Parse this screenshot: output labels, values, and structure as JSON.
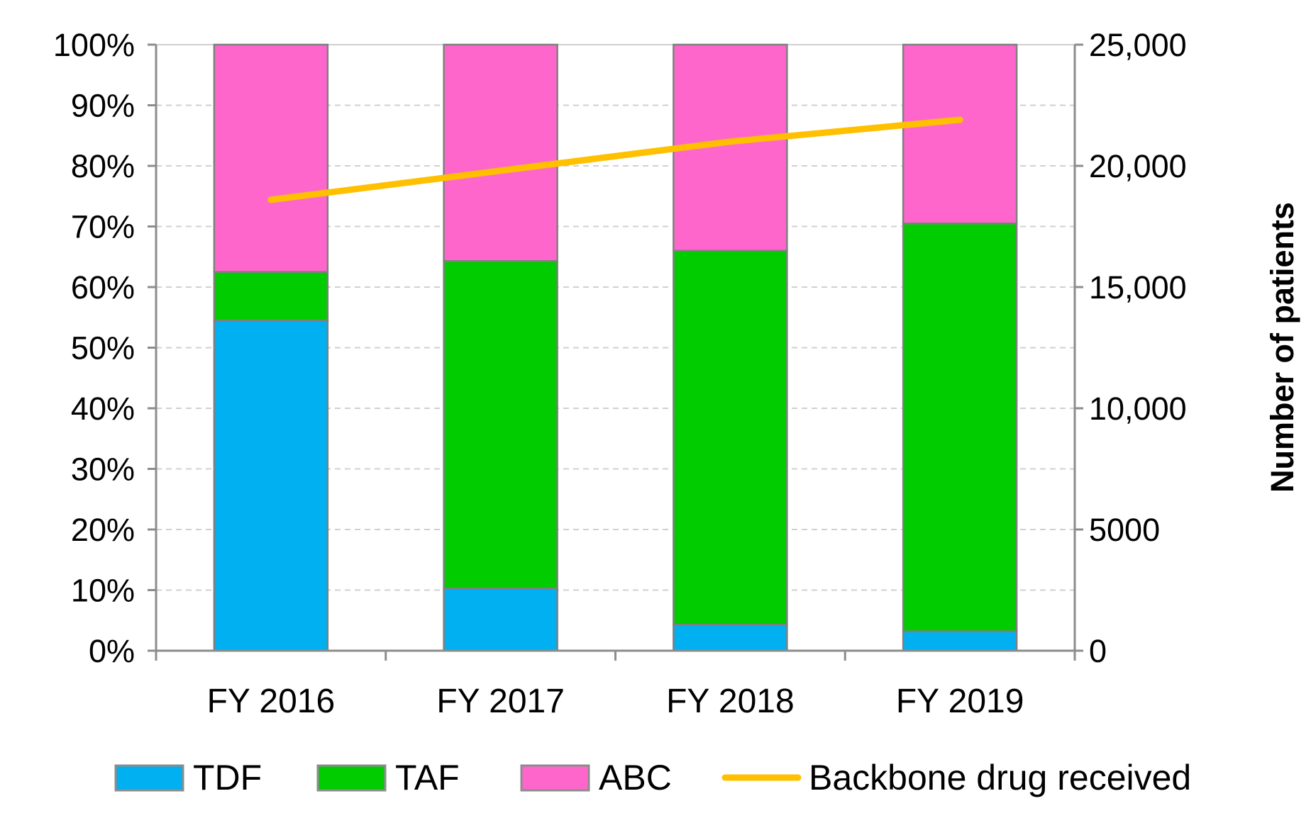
{
  "chart_data": {
    "type": "bar",
    "stacked": true,
    "title": "",
    "xlabel": "",
    "ylabel": "",
    "y2label": "Number of patients",
    "categories": [
      "FY 2016",
      "FY 2017",
      "FY 2018",
      "FY 2019"
    ],
    "ylim": [
      0,
      100
    ],
    "y2lim": [
      0,
      25000
    ],
    "yticks": [
      "0%",
      "10%",
      "20%",
      "30%",
      "40%",
      "50%",
      "60%",
      "70%",
      "80%",
      "90%",
      "100%"
    ],
    "y2ticks": [
      "0",
      "5000",
      "10,000",
      "15,000",
      "20,000",
      "25,000"
    ],
    "grid": true,
    "legend_position": "bottom",
    "series": [
      {
        "name": "TDF",
        "color": "#00b0f0",
        "values": [
          54.5,
          10.3,
          4.3,
          3.2
        ]
      },
      {
        "name": "TAF",
        "color": "#00cc00",
        "values": [
          8.0,
          54.0,
          61.7,
          67.3
        ]
      },
      {
        "name": "ABC",
        "color": "#ff66cc",
        "values": [
          37.5,
          35.7,
          34.0,
          29.5
        ]
      }
    ],
    "line_series": {
      "name": "Backbone drug received",
      "color": "#ffc000",
      "axis": "right",
      "values": [
        18600,
        19800,
        21000,
        21900
      ]
    }
  }
}
